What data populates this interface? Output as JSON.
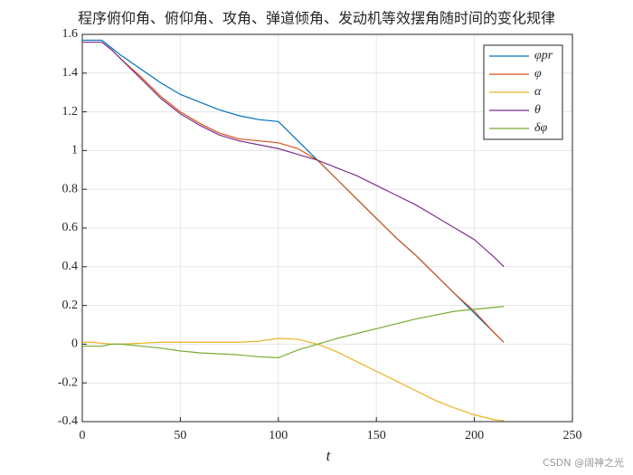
{
  "chart_data": {
    "type": "line",
    "title": "程序俯仰角、俯仰角、攻角、弹道倾角、发动机等效摆角随时间的变化规律",
    "x_label": "t",
    "watermark": "CSDN @阔神之光",
    "x": [
      0,
      5,
      10,
      15,
      20,
      30,
      40,
      50,
      60,
      70,
      80,
      90,
      100,
      110,
      120,
      130,
      140,
      150,
      160,
      170,
      180,
      190,
      200,
      210,
      215
    ],
    "series": [
      {
        "name": "φpr",
        "color": "#0072BD",
        "values": [
          1.57,
          1.57,
          1.57,
          1.53,
          1.49,
          1.42,
          1.35,
          1.29,
          1.25,
          1.21,
          1.18,
          1.16,
          1.15,
          1.05,
          0.95,
          0.85,
          0.75,
          0.65,
          0.55,
          0.46,
          0.36,
          0.26,
          0.16,
          0.06,
          0.01
        ]
      },
      {
        "name": "φ",
        "color": "#D95319",
        "values": [
          1.56,
          1.56,
          1.56,
          1.52,
          1.47,
          1.38,
          1.28,
          1.2,
          1.14,
          1.09,
          1.06,
          1.05,
          1.04,
          1.01,
          0.95,
          0.85,
          0.75,
          0.65,
          0.55,
          0.46,
          0.36,
          0.26,
          0.17,
          0.06,
          0.01
        ]
      },
      {
        "name": "α",
        "color": "#EDB120",
        "values": [
          0.01,
          0.01,
          0.005,
          0,
          0,
          0.005,
          0.01,
          0.01,
          0.01,
          0.01,
          0.01,
          0.015,
          0.03,
          0.025,
          0,
          -0.04,
          -0.09,
          -0.14,
          -0.19,
          -0.24,
          -0.29,
          -0.33,
          -0.365,
          -0.39,
          -0.395
        ]
      },
      {
        "name": "θ",
        "color": "#7E2F8E",
        "values": [
          1.56,
          1.56,
          1.56,
          1.52,
          1.47,
          1.37,
          1.27,
          1.19,
          1.13,
          1.08,
          1.05,
          1.03,
          1.01,
          0.98,
          0.95,
          0.91,
          0.87,
          0.82,
          0.77,
          0.72,
          0.66,
          0.6,
          0.54,
          0.45,
          0.4
        ]
      },
      {
        "name": "δφ",
        "color": "#77AC30",
        "values": [
          -0.01,
          -0.01,
          -0.01,
          0,
          0,
          -0.01,
          -0.02,
          -0.035,
          -0.045,
          -0.05,
          -0.055,
          -0.065,
          -0.07,
          -0.03,
          0,
          0.03,
          0.055,
          0.08,
          0.105,
          0.13,
          0.15,
          0.17,
          0.18,
          0.19,
          0.195
        ]
      }
    ],
    "xlim": [
      0,
      250
    ],
    "xticks": [
      0,
      50,
      100,
      150,
      200,
      250
    ],
    "ylim": [
      -0.4,
      1.6
    ],
    "yticks": [
      -0.4,
      -0.2,
      0,
      0.2,
      0.4,
      0.6,
      0.8,
      1,
      1.2,
      1.4,
      1.6
    ],
    "grid": true,
    "legend": "top-right"
  }
}
